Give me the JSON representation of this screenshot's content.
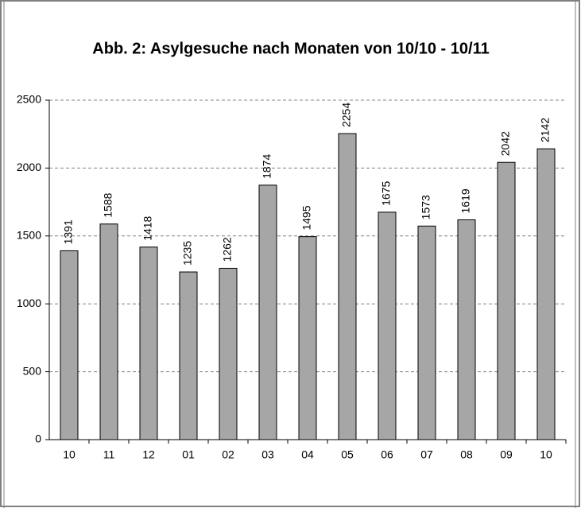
{
  "chart_data": {
    "type": "bar",
    "title": "Abb. 2: Asylgesuche nach Monaten von 10/10 - 10/11",
    "categories": [
      "10",
      "11",
      "12",
      "01",
      "02",
      "03",
      "04",
      "05",
      "06",
      "07",
      "08",
      "09",
      "10"
    ],
    "values": [
      1391,
      1588,
      1418,
      1235,
      1262,
      1874,
      1495,
      2254,
      1675,
      1573,
      1619,
      2042,
      2142
    ],
    "color": "#a6a6a6",
    "ylim": [
      0,
      2500
    ],
    "yticks": [
      0,
      500,
      1000,
      1500,
      2000,
      2500
    ],
    "grid": true
  }
}
